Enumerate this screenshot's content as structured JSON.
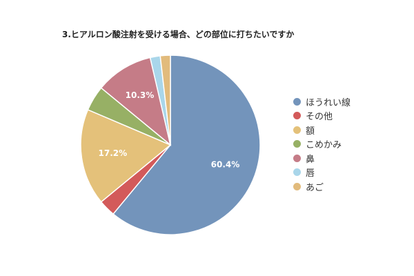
{
  "chart_data": {
    "type": "pie",
    "title": "3.ヒアルロン酸注射を受ける場合、どの部位に打ちたいですか",
    "legend_position": "right",
    "slices": [
      {
        "label": "ほうれい線",
        "value": 60.4,
        "color": "#7394bb",
        "data_label": "60.4%"
      },
      {
        "label": "その他",
        "value": 3.0,
        "color": "#d35a5a",
        "data_label": ""
      },
      {
        "label": "額",
        "value": 17.2,
        "color": "#e4c17a",
        "data_label": "17.2%"
      },
      {
        "label": "こめかみ",
        "value": 4.5,
        "color": "#97b065",
        "data_label": ""
      },
      {
        "label": "鼻",
        "value": 10.3,
        "color": "#c57c87",
        "data_label": "10.3%"
      },
      {
        "label": "唇",
        "value": 1.8,
        "color": "#a9d6ea",
        "data_label": ""
      },
      {
        "label": "あご",
        "value": 1.8,
        "color": "#e2bb7c",
        "data_label": ""
      }
    ]
  }
}
